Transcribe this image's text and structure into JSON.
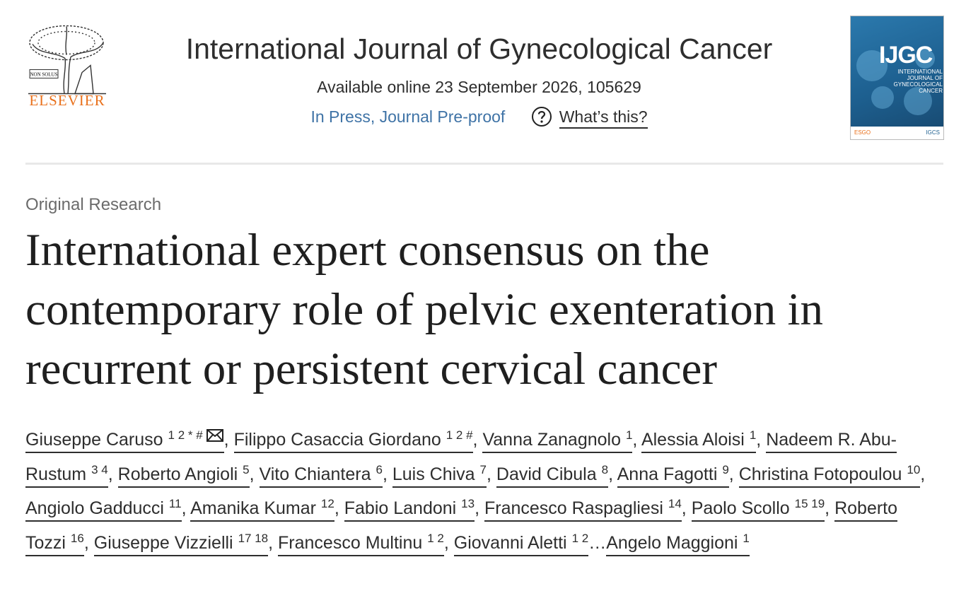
{
  "header": {
    "logo_motto": "NON SOLUS",
    "publisher": "ELSEVIER",
    "journal": "International Journal of Gynecological Cancer",
    "availability": "Available online 23 September 2026, 105629",
    "status": "In Press, Journal Pre-proof",
    "help": "What’s this?",
    "cover": {
      "title": "IJGC",
      "subtitle": "INTERNATIONAL JOURNAL OF GYNECOLOGICAL CANCER",
      "left_badge": "ESGO",
      "right_badge": "IGCS"
    }
  },
  "article": {
    "type": "Original Research",
    "title": "International expert consensus on the contemporary role of pelvic exenteration in recurrent or persistent cervical cancer",
    "authors": [
      {
        "name": "Giuseppe Caruso",
        "sup": "1 2 * #",
        "after": ","
      },
      {
        "name": "Filippo Casaccia Giordano",
        "sup": "1 2 #",
        "after": ","
      },
      {
        "name": "Vanna Zanagnolo",
        "sup": "1",
        "after": ","
      },
      {
        "name": "Alessia Aloisi",
        "sup": "1",
        "after": ","
      },
      {
        "name": "Nadeem R. Abu-Rustum",
        "sup": "3 4",
        "after": ","
      },
      {
        "name": "Roberto Angioli",
        "sup": "5",
        "after": ","
      },
      {
        "name": "Vito Chiantera",
        "sup": "6",
        "after": ","
      },
      {
        "name": "Luis Chiva",
        "sup": "7",
        "after": ","
      },
      {
        "name": "David Cibula",
        "sup": "8",
        "after": ","
      },
      {
        "name": "Anna Fagotti",
        "sup": "9",
        "after": ","
      },
      {
        "name": "Christina Fotopoulou",
        "sup": "10",
        "after": ","
      },
      {
        "name": "Angiolo Gadducci",
        "sup": "11",
        "after": ","
      },
      {
        "name": "Amanika Kumar",
        "sup": "12",
        "after": ","
      },
      {
        "name": "Fabio Landoni",
        "sup": "13",
        "after": ","
      },
      {
        "name": "Francesco Raspagliesi",
        "sup": "14",
        "after": ","
      },
      {
        "name": "Paolo Scollo",
        "sup": "15 19",
        "after": ","
      },
      {
        "name": "Roberto Tozzi",
        "sup": "16",
        "after": ","
      },
      {
        "name": "Giuseppe Vizzielli",
        "sup": "17 18",
        "after": ","
      },
      {
        "name": "Francesco Multinu",
        "sup": "1 2",
        "after": ","
      },
      {
        "name": "Giovanni Aletti",
        "sup": "1 2",
        "after": "…"
      },
      {
        "name": "Angelo Maggioni",
        "sup": "1"
      }
    ]
  }
}
